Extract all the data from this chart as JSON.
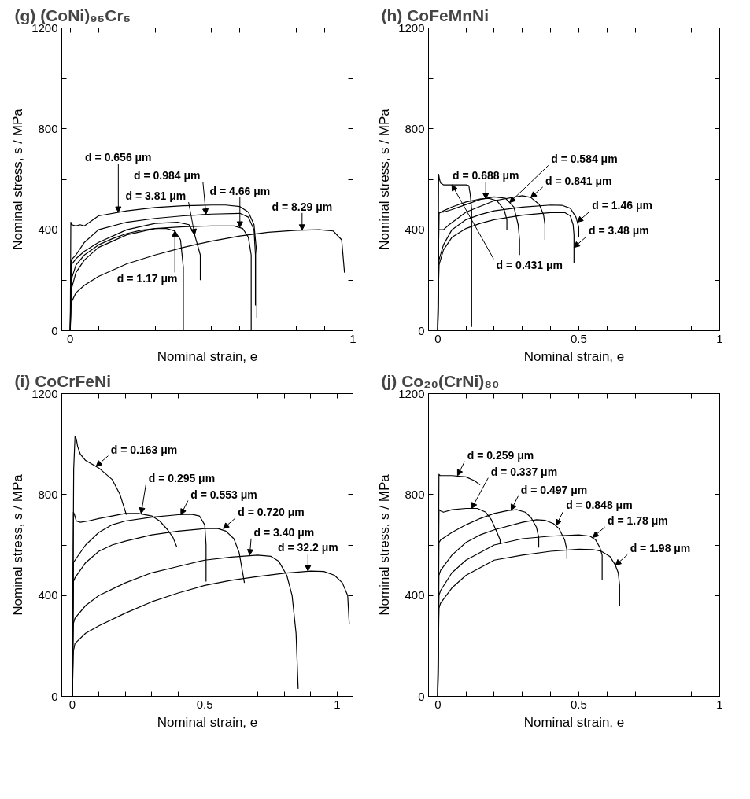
{
  "chart_data": [
    {
      "type": "line",
      "title": "(g) (CoNi)₉₅Cr₅",
      "xlabel": "Nominal strain, e",
      "ylabel": "Nominal stress, s / MPa",
      "xlim": [
        -0.03,
        1.0
      ],
      "ylim": [
        0,
        1200
      ],
      "xticks": [
        0,
        {
          "value": 0.1,
          "label": null
        },
        {
          "value": 0.2,
          "label": null
        },
        {
          "value": 0.3,
          "label": null
        },
        {
          "value": 0.4,
          "label": null
        },
        {
          "value": 0.5,
          "label": null
        },
        {
          "value": 0.6,
          "label": null
        },
        {
          "value": 0.7,
          "label": null
        },
        {
          "value": 0.8,
          "label": null
        },
        {
          "value": 0.9,
          "label": null
        },
        1
      ],
      "yticks": [
        0,
        {
          "value": 200,
          "label": null
        },
        400,
        {
          "value": 600,
          "label": null
        },
        800,
        {
          "value": 1000,
          "label": null
        },
        1200
      ],
      "series": [
        {
          "color": "#000000",
          "x": [
            0,
            0.002,
            0.005,
            0.02,
            0.035,
            0.05,
            0.1,
            0.2,
            0.3,
            0.4,
            0.5,
            0.55,
            0.6,
            0.63,
            0.65,
            0.66,
            0.66
          ],
          "values": [
            0,
            430,
            420,
            415,
            420,
            415,
            455,
            475,
            488,
            495,
            498,
            498,
            492,
            470,
            420,
            300,
            50
          ]
        },
        {
          "color": "#000000",
          "x": [
            0,
            0.003,
            0.02,
            0.05,
            0.1,
            0.2,
            0.3,
            0.4,
            0.5,
            0.6,
            0.63,
            0.65,
            0.655,
            0.655
          ],
          "values": [
            0,
            280,
            300,
            350,
            400,
            430,
            445,
            455,
            462,
            465,
            450,
            400,
            300,
            100
          ]
        },
        {
          "color": "#000000",
          "x": [
            0,
            0.003,
            0.02,
            0.05,
            0.1,
            0.15,
            0.2,
            0.25,
            0.3,
            0.34,
            0.37,
            0.39,
            0.4,
            0.4
          ],
          "values": [
            0,
            200,
            260,
            300,
            340,
            365,
            385,
            398,
            405,
            405,
            395,
            360,
            250,
            0
          ]
        },
        {
          "color": "#000000",
          "x": [
            0,
            0.003,
            0.02,
            0.05,
            0.1,
            0.2,
            0.3,
            0.38,
            0.42,
            0.44,
            0.46,
            0.46
          ],
          "values": [
            0,
            260,
            285,
            315,
            350,
            400,
            425,
            430,
            420,
            380,
            300,
            200
          ]
        },
        {
          "color": "#000000",
          "x": [
            0,
            0.003,
            0.02,
            0.05,
            0.1,
            0.2,
            0.3,
            0.4,
            0.5,
            0.58,
            0.61,
            0.63,
            0.64,
            0.64
          ],
          "values": [
            0,
            160,
            230,
            280,
            330,
            380,
            405,
            412,
            415,
            415,
            405,
            370,
            300,
            0
          ]
        },
        {
          "color": "#000000",
          "x": [
            0,
            0.003,
            0.02,
            0.05,
            0.1,
            0.2,
            0.3,
            0.4,
            0.5,
            0.6,
            0.7,
            0.8,
            0.88,
            0.93,
            0.96,
            0.97
          ],
          "values": [
            0,
            110,
            150,
            180,
            215,
            265,
            300,
            330,
            355,
            375,
            390,
            398,
            400,
            395,
            360,
            230
          ]
        }
      ],
      "annotations": [
        {
          "text": "d = 0.656 μm",
          "x": 0.17,
          "y": 469
        },
        {
          "text": "d = 0.984 μm",
          "x": 0.48,
          "y": 461
        },
        {
          "text": "d = 1.17 μm",
          "x": 0.37,
          "y": 395
        },
        {
          "text": "d = 3.81 μm",
          "x": 0.44,
          "y": 380
        },
        {
          "text": "d = 4.66 μm",
          "x": 0.6,
          "y": 410
        },
        {
          "text": "d = 8.29 μm",
          "x": 0.82,
          "y": 398
        }
      ]
    },
    {
      "type": "line",
      "title": "(h) CoFeMnNi",
      "xlabel": "Nominal strain, e",
      "ylabel": "Nominal stress, s / MPa",
      "xlim": [
        -0.033,
        1.0
      ],
      "ylim": [
        0,
        1200
      ],
      "xticks": [
        0,
        {
          "value": 0.1,
          "label": null
        },
        {
          "value": 0.2,
          "label": null
        },
        {
          "value": 0.3,
          "label": null
        },
        {
          "value": 0.4,
          "label": null
        },
        0.5,
        {
          "value": 0.6,
          "label": null
        },
        {
          "value": 0.7,
          "label": null
        },
        {
          "value": 0.8,
          "label": null
        },
        {
          "value": 0.9,
          "label": null
        },
        1
      ],
      "yticks": [
        0,
        {
          "value": 200,
          "label": null
        },
        400,
        {
          "value": 600,
          "label": null
        },
        800,
        {
          "value": 1000,
          "label": null
        },
        1200
      ],
      "series": [
        {
          "color": "#000000",
          "x": [
            0,
            0.003,
            0.006,
            0.01,
            0.02,
            0.05,
            0.1,
            0.11,
            0.115,
            0.12,
            0.12
          ],
          "values": [
            0,
            620,
            600,
            585,
            578,
            578,
            578,
            575,
            540,
            480,
            15
          ]
        },
        {
          "color": "#000000",
          "x": [
            0,
            0.004,
            0.02,
            0.05,
            0.1,
            0.15,
            0.2,
            0.24,
            0.27,
            0.285,
            0.29,
            0.29
          ],
          "values": [
            0,
            470,
            470,
            480,
            500,
            520,
            530,
            525,
            490,
            420,
            360,
            300
          ]
        },
        {
          "color": "#000000",
          "x": [
            0,
            0.004,
            0.02,
            0.05,
            0.1,
            0.15,
            0.18,
            0.21,
            0.235,
            0.245,
            0.245
          ],
          "values": [
            0,
            465,
            475,
            490,
            510,
            522,
            525,
            515,
            480,
            440,
            400
          ]
        },
        {
          "color": "#000000",
          "x": [
            0,
            0.003,
            0.02,
            0.04,
            0.1,
            0.2,
            0.3,
            0.33,
            0.36,
            0.375,
            0.38,
            0.38
          ],
          "values": [
            0,
            400,
            400,
            420,
            470,
            515,
            535,
            528,
            500,
            460,
            420,
            360
          ]
        },
        {
          "color": "#000000",
          "x": [
            0,
            0.004,
            0.02,
            0.05,
            0.1,
            0.15,
            0.2,
            0.3,
            0.4,
            0.44,
            0.47,
            0.49,
            0.5,
            0.5
          ],
          "values": [
            0,
            280,
            340,
            400,
            440,
            460,
            475,
            490,
            498,
            497,
            485,
            450,
            410,
            370
          ]
        },
        {
          "color": "#000000",
          "x": [
            0,
            0.004,
            0.02,
            0.05,
            0.1,
            0.15,
            0.2,
            0.3,
            0.4,
            0.45,
            0.47,
            0.48,
            0.483,
            0.483
          ],
          "values": [
            0,
            260,
            320,
            370,
            405,
            425,
            440,
            458,
            468,
            468,
            455,
            420,
            380,
            270
          ]
        }
      ],
      "annotations": [
        {
          "text": "d = 0.431 μm",
          "x": 0.05,
          "y": 578
        },
        {
          "text": "d = 0.584 μm",
          "x": 0.255,
          "y": 508
        },
        {
          "text": "d = 0.688 μm",
          "x": 0.17,
          "y": 522
        },
        {
          "text": "d = 0.841 μm",
          "x": 0.33,
          "y": 528
        },
        {
          "text": "d = 1.46 μm",
          "x": 0.495,
          "y": 430
        },
        {
          "text": "d = 3.48 μm",
          "x": 0.483,
          "y": 330
        }
      ]
    },
    {
      "type": "line",
      "title": "(i) CoCrFeNi",
      "xlabel": "Nominal strain, e",
      "ylabel": "Nominal stress, s / MPa",
      "xlim": [
        -0.04,
        1.06
      ],
      "ylim": [
        0,
        1200
      ],
      "xticks": [
        0,
        {
          "value": 0.1,
          "label": null
        },
        {
          "value": 0.2,
          "label": null
        },
        {
          "value": 0.3,
          "label": null
        },
        {
          "value": 0.4,
          "label": null
        },
        0.5,
        {
          "value": 0.6,
          "label": null
        },
        {
          "value": 0.7,
          "label": null
        },
        {
          "value": 0.8,
          "label": null
        },
        {
          "value": 0.9,
          "label": null
        },
        1
      ],
      "yticks": [
        0,
        {
          "value": 200,
          "label": null
        },
        400,
        {
          "value": 600,
          "label": null
        },
        800,
        {
          "value": 1000,
          "label": null
        },
        1200
      ],
      "series": [
        {
          "color": "#000000",
          "x": [
            0,
            0.005,
            0.01,
            0.015,
            0.02,
            0.03,
            0.05,
            0.1,
            0.15,
            0.18,
            0.204
          ],
          "values": [
            0,
            900,
            1030,
            1020,
            990,
            960,
            935,
            905,
            860,
            800,
            720
          ]
        },
        {
          "color": "#000000",
          "x": [
            0,
            0.004,
            0.008,
            0.015,
            0.03,
            0.06,
            0.1,
            0.2,
            0.25,
            0.3,
            0.33,
            0.36,
            0.38,
            0.394
          ],
          "values": [
            0,
            730,
            720,
            695,
            690,
            695,
            705,
            725,
            725,
            715,
            695,
            660,
            630,
            594
          ]
        },
        {
          "color": "#000000",
          "x": [
            0,
            0.004,
            0.01,
            0.05,
            0.1,
            0.15,
            0.2,
            0.3,
            0.4,
            0.45,
            0.48,
            0.5,
            0.505,
            0.505
          ],
          "values": [
            0,
            530,
            540,
            600,
            650,
            680,
            695,
            710,
            720,
            722,
            715,
            680,
            600,
            455
          ]
        },
        {
          "color": "#000000",
          "x": [
            0,
            0.004,
            0.01,
            0.05,
            0.1,
            0.15,
            0.2,
            0.3,
            0.4,
            0.5,
            0.55,
            0.58,
            0.61,
            0.63,
            0.65
          ],
          "values": [
            0,
            455,
            470,
            530,
            575,
            600,
            615,
            640,
            655,
            665,
            665,
            655,
            625,
            570,
            450
          ]
        },
        {
          "color": "#000000",
          "x": [
            0,
            0.004,
            0.01,
            0.05,
            0.1,
            0.2,
            0.3,
            0.4,
            0.5,
            0.6,
            0.7,
            0.75,
            0.78,
            0.81,
            0.83,
            0.845,
            0.853
          ],
          "values": [
            0,
            290,
            310,
            360,
            400,
            450,
            490,
            515,
            540,
            552,
            560,
            555,
            535,
            480,
            400,
            250,
            30
          ]
        },
        {
          "color": "#000000",
          "x": [
            0,
            0.004,
            0.01,
            0.05,
            0.1,
            0.2,
            0.3,
            0.4,
            0.5,
            0.6,
            0.7,
            0.8,
            0.9,
            0.95,
            0.99,
            1.02,
            1.04,
            1.046
          ],
          "values": [
            0,
            180,
            210,
            250,
            280,
            330,
            375,
            410,
            440,
            460,
            475,
            488,
            497,
            495,
            480,
            450,
            400,
            285
          ]
        }
      ],
      "annotations": [
        {
          "text": "d = 0.163 μm",
          "x": 0.09,
          "y": 912
        },
        {
          "text": "d = 0.295 μm",
          "x": 0.26,
          "y": 725
        },
        {
          "text": "d = 0.553 μm",
          "x": 0.41,
          "y": 720
        },
        {
          "text": "d = 0.720 μm",
          "x": 0.57,
          "y": 665
        },
        {
          "text": "d = 3.40 μm",
          "x": 0.67,
          "y": 560
        },
        {
          "text": "d = 32.2 μm",
          "x": 0.89,
          "y": 497
        }
      ]
    },
    {
      "type": "line",
      "title": "(j) Co₂₀(CrNi)₈₀",
      "xlabel": "Nominal strain, e",
      "ylabel": "Nominal stress, s / MPa",
      "xlim": [
        -0.033,
        1.0
      ],
      "ylim": [
        0,
        1200
      ],
      "xticks": [
        0,
        {
          "value": 0.1,
          "label": null
        },
        {
          "value": 0.2,
          "label": null
        },
        {
          "value": 0.3,
          "label": null
        },
        {
          "value": 0.4,
          "label": null
        },
        0.5,
        {
          "value": 0.6,
          "label": null
        },
        {
          "value": 0.7,
          "label": null
        },
        {
          "value": 0.8,
          "label": null
        },
        {
          "value": 0.9,
          "label": null
        },
        1
      ],
      "yticks": [
        0,
        {
          "value": 200,
          "label": null
        },
        400,
        {
          "value": 600,
          "label": null
        },
        800,
        {
          "value": 1000,
          "label": null
        },
        1200
      ],
      "series": [
        {
          "color": "#000000",
          "x": [
            0,
            0.004,
            0.008,
            0.05,
            0.1,
            0.13,
            0.15
          ],
          "values": [
            0,
            880,
            875,
            875,
            870,
            855,
            838
          ]
        },
        {
          "color": "#000000",
          "x": [
            0,
            0.004,
            0.01,
            0.02,
            0.05,
            0.1,
            0.14,
            0.17,
            0.19,
            0.21,
            0.221,
            0.221
          ],
          "values": [
            0,
            740,
            735,
            730,
            740,
            745,
            745,
            730,
            700,
            650,
            620,
            604
          ]
        },
        {
          "color": "#000000",
          "x": [
            0,
            0.004,
            0.01,
            0.05,
            0.1,
            0.15,
            0.2,
            0.25,
            0.28,
            0.31,
            0.33,
            0.35,
            0.358,
            0.358
          ],
          "values": [
            0,
            610,
            620,
            650,
            680,
            705,
            725,
            737,
            740,
            730,
            710,
            670,
            630,
            590
          ]
        },
        {
          "color": "#000000",
          "x": [
            0,
            0.004,
            0.01,
            0.05,
            0.1,
            0.15,
            0.2,
            0.3,
            0.35,
            0.38,
            0.41,
            0.43,
            0.45,
            0.458,
            0.458
          ],
          "values": [
            0,
            480,
            500,
            560,
            610,
            640,
            660,
            690,
            700,
            698,
            685,
            665,
            620,
            580,
            545
          ]
        },
        {
          "color": "#000000",
          "x": [
            0,
            0.004,
            0.01,
            0.05,
            0.1,
            0.2,
            0.3,
            0.4,
            0.5,
            0.54,
            0.56,
            0.575,
            0.583,
            0.583
          ],
          "values": [
            0,
            400,
            420,
            490,
            540,
            600,
            625,
            635,
            640,
            635,
            620,
            590,
            560,
            460
          ]
        },
        {
          "color": "#000000",
          "x": [
            0,
            0.004,
            0.01,
            0.05,
            0.1,
            0.2,
            0.3,
            0.4,
            0.5,
            0.55,
            0.58,
            0.61,
            0.63,
            0.64,
            0.645,
            0.645
          ],
          "values": [
            0,
            350,
            370,
            430,
            480,
            540,
            560,
            575,
            583,
            582,
            575,
            555,
            520,
            490,
            440,
            360
          ]
        }
      ],
      "annotations": [
        {
          "text": "d = 0.259 μm",
          "x": 0.07,
          "y": 875
        },
        {
          "text": "d = 0.337 μm",
          "x": 0.12,
          "y": 745
        },
        {
          "text": "d = 0.497 μm",
          "x": 0.26,
          "y": 738
        },
        {
          "text": "d = 0.848 μm",
          "x": 0.42,
          "y": 678
        },
        {
          "text": "d = 1.78 μm",
          "x": 0.55,
          "y": 630
        },
        {
          "text": "d = 1.98 μm",
          "x": 0.63,
          "y": 520
        }
      ]
    }
  ]
}
